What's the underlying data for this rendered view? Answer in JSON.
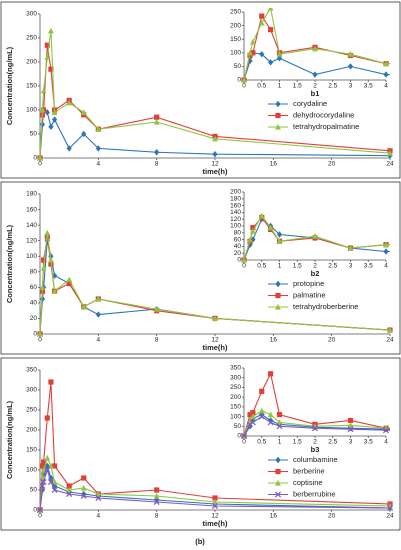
{
  "chart_data": [
    {
      "type": "line",
      "xlabel": "time(h)",
      "ylabel": "Concentration(ng/mL)",
      "x": [
        0,
        0.17,
        0.25,
        0.5,
        0.75,
        1,
        2,
        3,
        4,
        8,
        12,
        24
      ],
      "series": [
        {
          "name": "corydaline",
          "color": "#2e75b6",
          "marker": "diamond",
          "values": [
            0,
            70,
            100,
            95,
            65,
            80,
            20,
            50,
            20,
            12,
            8,
            5
          ]
        },
        {
          "name": "dehydrocorydaline",
          "color": "#e0403a",
          "marker": "square",
          "values": [
            0,
            90,
            100,
            235,
            185,
            100,
            120,
            90,
            60,
            85,
            45,
            15
          ]
        },
        {
          "name": "tetrahydropalmatine",
          "color": "#8dc63f",
          "marker": "triangle",
          "values": [
            0,
            100,
            140,
            210,
            265,
            95,
            115,
            95,
            60,
            75,
            40,
            10
          ]
        }
      ],
      "xlim": [
        0,
        24
      ],
      "xticks": [
        0,
        4,
        8,
        12,
        16,
        20,
        24
      ],
      "ylim": [
        0,
        300
      ],
      "yticks": [
        0,
        50,
        100,
        150,
        200,
        250,
        300
      ],
      "inset": {
        "label": "b1",
        "xlim": [
          0,
          4
        ],
        "xticks": [
          0,
          0.5,
          1,
          1.5,
          2,
          2.5,
          3,
          3.5,
          4
        ],
        "ylim": [
          0,
          250
        ],
        "yticks": [
          0,
          50,
          100,
          150,
          200,
          250
        ]
      }
    },
    {
      "type": "line",
      "xlabel": "time(h)",
      "ylabel": "Concentration(ng/mL)",
      "x": [
        0,
        0.17,
        0.25,
        0.5,
        0.75,
        1,
        2,
        3,
        4,
        8,
        12,
        24
      ],
      "series": [
        {
          "name": "protopine",
          "color": "#2e75b6",
          "marker": "diamond",
          "values": [
            0,
            45,
            60,
            120,
            100,
            75,
            65,
            35,
            25,
            32,
            20,
            5
          ]
        },
        {
          "name": "palmatine",
          "color": "#e0403a",
          "marker": "square",
          "values": [
            0,
            55,
            95,
            125,
            90,
            55,
            65,
            35,
            45,
            30,
            20,
            5
          ]
        },
        {
          "name": "tetrahydroberberine",
          "color": "#8dc63f",
          "marker": "triangle",
          "values": [
            0,
            60,
            85,
            130,
            95,
            55,
            70,
            35,
            45,
            32,
            20,
            5
          ]
        }
      ],
      "xlim": [
        0,
        24
      ],
      "xticks": [
        0,
        4,
        8,
        12,
        16,
        20,
        24
      ],
      "ylim": [
        0,
        180
      ],
      "yticks": [
        0,
        20,
        40,
        60,
        80,
        100,
        120,
        140,
        160,
        180
      ],
      "inset": {
        "label": "b2",
        "xlim": [
          0,
          4
        ],
        "xticks": [
          0,
          0.5,
          1,
          1.5,
          2,
          2.5,
          3,
          3.5,
          4
        ],
        "ylim": [
          0,
          200
        ],
        "yticks": [
          0,
          20,
          40,
          60,
          80,
          100,
          120,
          140,
          160,
          180,
          200
        ]
      }
    },
    {
      "type": "line",
      "xlabel": "time(h)",
      "ylabel": "Concentration(ng/mL)",
      "x": [
        0,
        0.17,
        0.25,
        0.5,
        0.75,
        1,
        2,
        3,
        4,
        8,
        12,
        24
      ],
      "series": [
        {
          "name": "columbamine",
          "color": "#2e75b6",
          "marker": "diamond",
          "values": [
            0,
            50,
            90,
            110,
            80,
            60,
            45,
            40,
            35,
            25,
            15,
            5
          ]
        },
        {
          "name": "berberine",
          "color": "#e0403a",
          "marker": "square",
          "values": [
            0,
            110,
            120,
            230,
            320,
            110,
            60,
            80,
            40,
            50,
            30,
            15
          ]
        },
        {
          "name": "coptisine",
          "color": "#8dc63f",
          "marker": "triangle",
          "values": [
            0,
            80,
            100,
            130,
            110,
            70,
            50,
            55,
            40,
            35,
            20,
            10
          ]
        },
        {
          "name": "berberrubine",
          "color": "#7e57c2",
          "marker": "x",
          "values": [
            0,
            60,
            70,
            100,
            70,
            50,
            40,
            35,
            30,
            20,
            10,
            5
          ]
        }
      ],
      "xlim": [
        0,
        24
      ],
      "xticks": [
        0,
        4,
        8,
        12,
        16,
        20,
        24
      ],
      "ylim": [
        0,
        350
      ],
      "yticks": [
        0,
        50,
        100,
        150,
        200,
        250,
        300,
        350
      ],
      "inset": {
        "label": "b3",
        "xlim": [
          0,
          4
        ],
        "xticks": [
          0,
          0.5,
          1,
          1.5,
          2,
          2.5,
          3,
          3.5,
          4
        ],
        "ylim": [
          0,
          350
        ],
        "yticks": [
          0,
          50,
          100,
          150,
          200,
          250,
          300,
          350
        ]
      }
    }
  ],
  "caption": "(b)"
}
